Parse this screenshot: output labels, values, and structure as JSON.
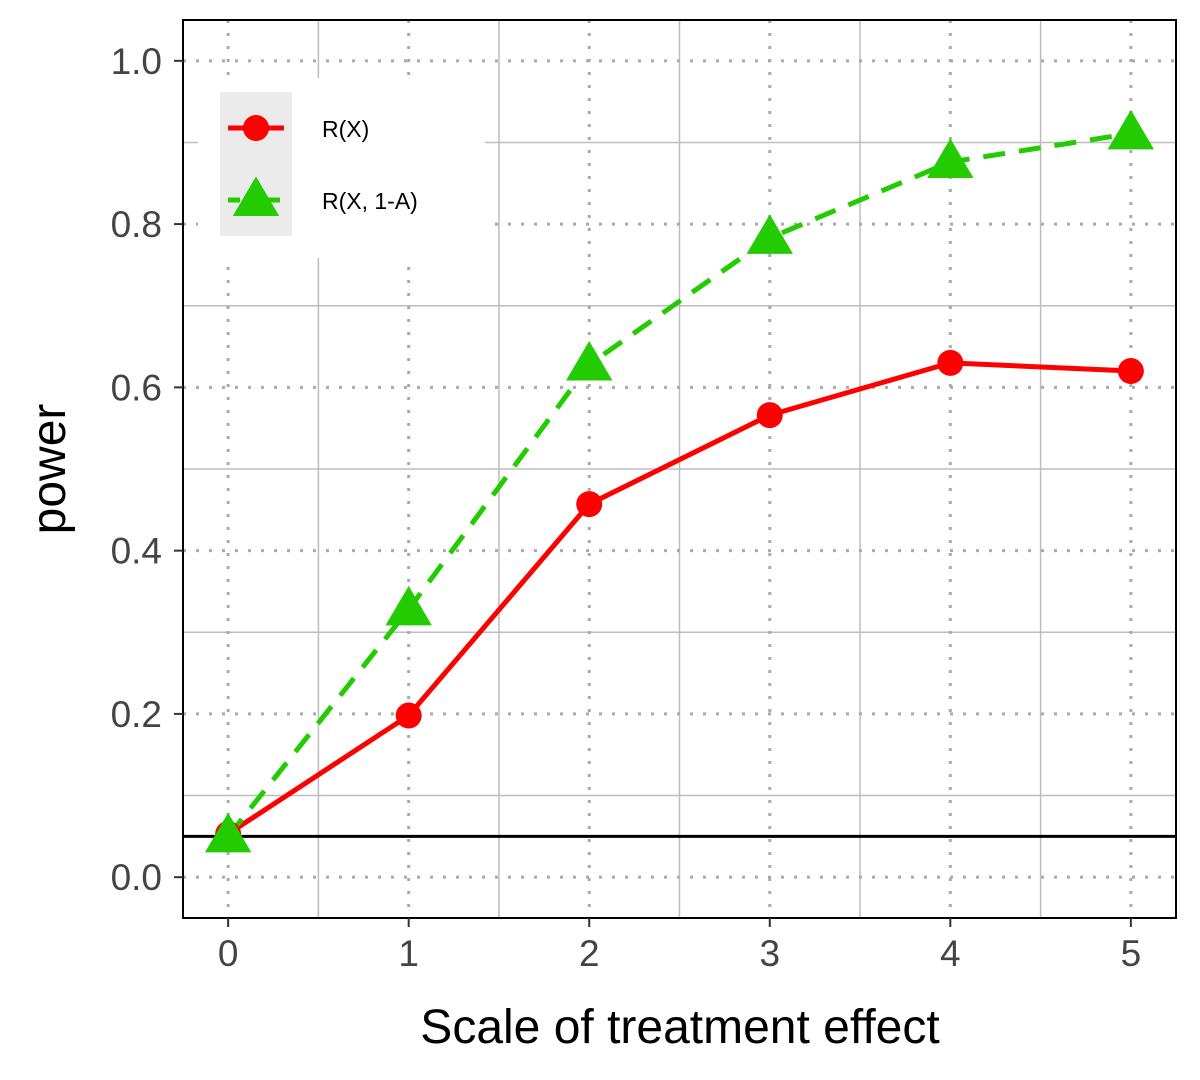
{
  "chart_data": {
    "type": "line",
    "title": "",
    "xlabel": "Scale of treatment effect",
    "ylabel": "power",
    "x": [
      0,
      1,
      2,
      3,
      4,
      5
    ],
    "xlim": [
      -0.25,
      5.25
    ],
    "ylim": [
      -0.05,
      1.05
    ],
    "x_ticks": [
      "0",
      "1",
      "2",
      "3",
      "4",
      "5"
    ],
    "y_ticks": [
      "0.0",
      "0.2",
      "0.4",
      "0.6",
      "0.8",
      "1.0"
    ],
    "grid": true,
    "reference_line": {
      "y": 0.05,
      "color": "#000000"
    },
    "legend": {
      "position": "top-left"
    },
    "series": [
      {
        "name": "R(X)",
        "marker": "circle",
        "line": "solid",
        "color": "#FF0000",
        "values": [
          0.053,
          0.198,
          0.457,
          0.566,
          0.63,
          0.62
        ]
      },
      {
        "name": "R(X, 1-A)",
        "marker": "triangle",
        "line": "dashed",
        "color": "#22CC00",
        "values": [
          0.05,
          0.328,
          0.628,
          0.783,
          0.876,
          0.911
        ]
      }
    ]
  }
}
